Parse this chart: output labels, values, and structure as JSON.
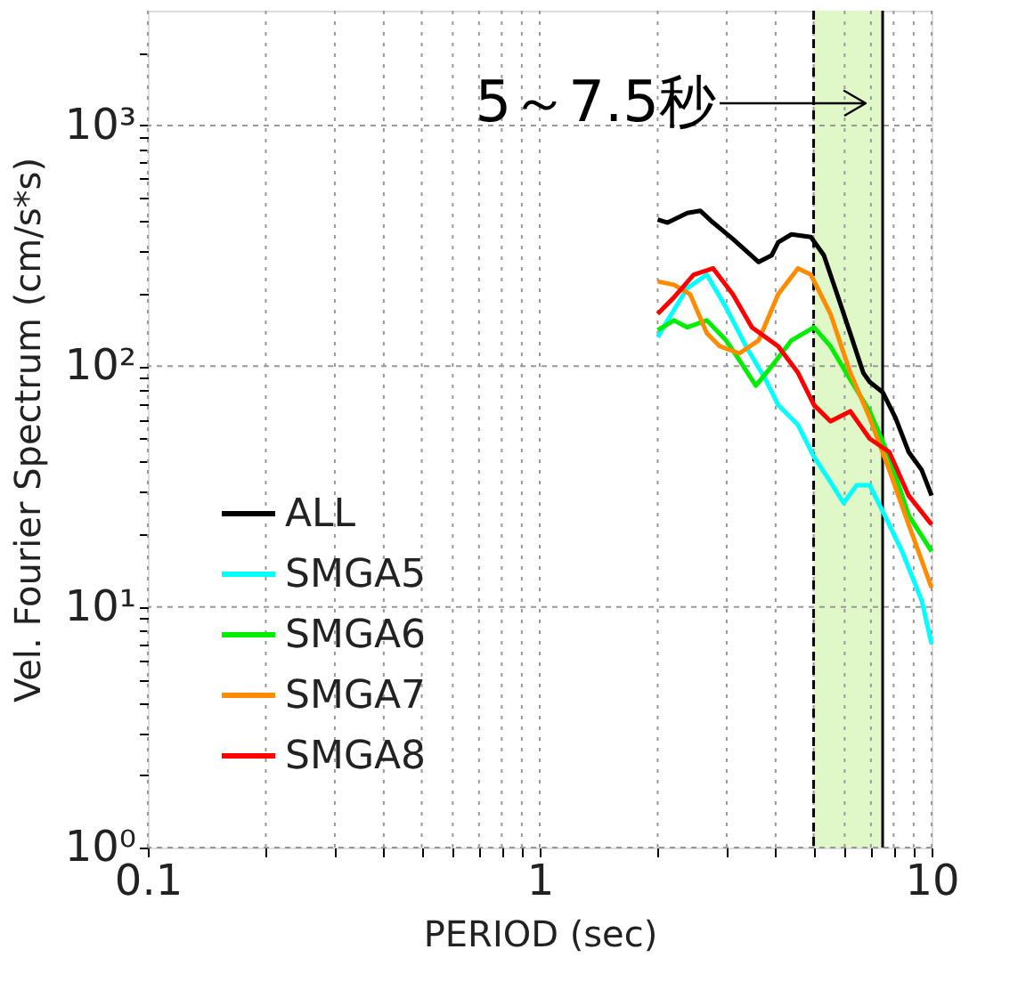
{
  "chart_data": {
    "type": "line",
    "xlabel": "PERIOD (sec)",
    "ylabel": "Vel. Fourier Spectrum (cm/s*s)",
    "log": "xy",
    "grid": true,
    "legend": "bottom left",
    "line_style": "solid",
    "marker": "none",
    "xlim": [
      0.1,
      10
    ],
    "ylim": [
      1,
      3000
    ],
    "xticks": [
      0.1,
      {
        "value": 0.2,
        "label": null
      },
      {
        "value": 0.3,
        "label": null
      },
      {
        "value": 0.4,
        "label": null
      },
      {
        "value": 0.5,
        "label": null
      },
      {
        "value": 0.6,
        "label": null
      },
      {
        "value": 0.7,
        "label": null
      },
      {
        "value": 0.8,
        "label": null
      },
      {
        "value": 0.9,
        "label": null
      },
      1,
      {
        "value": 2,
        "label": null
      },
      {
        "value": 3,
        "label": null
      },
      {
        "value": 4,
        "label": null
      },
      {
        "value": 5,
        "label": null
      },
      {
        "value": 6,
        "label": null
      },
      {
        "value": 7,
        "label": null
      },
      {
        "value": 8,
        "label": null
      },
      {
        "value": 9,
        "label": null
      },
      10
    ],
    "yticks": [
      {
        "value": 1,
        "label": "10⁰"
      },
      {
        "value": 2,
        "label": null
      },
      {
        "value": 3,
        "label": null
      },
      {
        "value": 4,
        "label": null
      },
      {
        "value": 5,
        "label": null
      },
      {
        "value": 6,
        "label": null
      },
      {
        "value": 7,
        "label": null
      },
      {
        "value": 8,
        "label": null
      },
      {
        "value": 9,
        "label": null
      },
      {
        "value": 10,
        "label": "10¹"
      },
      {
        "value": 20,
        "label": null
      },
      {
        "value": 30,
        "label": null
      },
      {
        "value": 40,
        "label": null
      },
      {
        "value": 50,
        "label": null
      },
      {
        "value": 60,
        "label": null
      },
      {
        "value": 70,
        "label": null
      },
      {
        "value": 80,
        "label": null
      },
      {
        "value": 90,
        "label": null
      },
      {
        "value": 100,
        "label": "10²"
      },
      {
        "value": 200,
        "label": null
      },
      {
        "value": 300,
        "label": null
      },
      {
        "value": 400,
        "label": null
      },
      {
        "value": 500,
        "label": null
      },
      {
        "value": 600,
        "label": null
      },
      {
        "value": 700,
        "label": null
      },
      {
        "value": 800,
        "label": null
      },
      {
        "value": 900,
        "label": null
      },
      {
        "value": 1000,
        "label": "10³"
      },
      {
        "value": 2000,
        "label": null
      }
    ],
    "bands": [
      {
        "axis": "x",
        "from": 5,
        "to": 7.5,
        "color": "#e0f8c8"
      }
    ],
    "ref_lines": [
      {
        "axis": "x",
        "value": 5,
        "line_style": "dashed",
        "color": "#000000"
      },
      {
        "axis": "x",
        "value": 7.5,
        "line_style": "solid",
        "color": "#000000"
      }
    ],
    "annotations": [
      "5～7.5秒"
    ],
    "series": [
      {
        "name": "ALL",
        "color": "#000000",
        "x": [
          2.0,
          2.12,
          2.38,
          2.57,
          2.77,
          3.11,
          3.62,
          3.91,
          4.06,
          4.39,
          4.92,
          5.31,
          5.74,
          6.2,
          6.69,
          6.95,
          7.5,
          8.09,
          8.74,
          9.44,
          10
        ],
        "values": [
          407,
          395,
          433,
          442,
          395,
          338,
          271,
          289,
          327,
          353,
          344,
          289,
          199,
          137,
          94,
          86,
          78,
          61,
          44,
          37,
          29
        ]
      },
      {
        "name": "SMGA5",
        "color": "#00ffff",
        "x": [
          2.0,
          2.12,
          2.38,
          2.67,
          2.99,
          3.36,
          3.77,
          4.06,
          4.56,
          5.01,
          5.52,
          5.96,
          6.44,
          6.95,
          7.5,
          8.41,
          9.44,
          10
        ],
        "values": [
          132,
          155,
          211,
          240,
          175,
          121,
          88,
          69,
          57,
          42,
          33,
          27,
          32,
          32,
          25,
          17,
          10.6,
          7.0
        ]
      },
      {
        "name": "SMGA6",
        "color": "#00ee00",
        "x": [
          2.0,
          2.2,
          2.38,
          2.67,
          2.99,
          3.23,
          3.56,
          3.91,
          4.39,
          5.01,
          5.52,
          6.2,
          6.95,
          7.8,
          8.74,
          10
        ],
        "values": [
          141,
          155,
          145,
          155,
          128,
          106,
          83,
          100,
          128,
          145,
          121,
          88,
          65,
          42,
          24,
          17
        ]
      },
      {
        "name": "SMGA7",
        "color": "#ff8c00",
        "x": [
          2.0,
          2.2,
          2.42,
          2.67,
          2.88,
          3.23,
          3.62,
          4.06,
          4.56,
          4.92,
          5.52,
          6.2,
          6.95,
          7.8,
          8.74,
          10
        ],
        "values": [
          225,
          218,
          199,
          137,
          121,
          113,
          128,
          199,
          255,
          240,
          165,
          94,
          61,
          37,
          22,
          12
        ]
      },
      {
        "name": "SMGA8",
        "color": "#ff0000",
        "x": [
          2.0,
          2.2,
          2.47,
          2.77,
          3.11,
          3.48,
          4.06,
          4.56,
          5.01,
          5.52,
          6.2,
          6.95,
          7.8,
          8.74,
          10
        ],
        "values": [
          165,
          193,
          240,
          255,
          199,
          145,
          121,
          94,
          69,
          59,
          65,
          50,
          44,
          29,
          22
        ]
      }
    ]
  }
}
